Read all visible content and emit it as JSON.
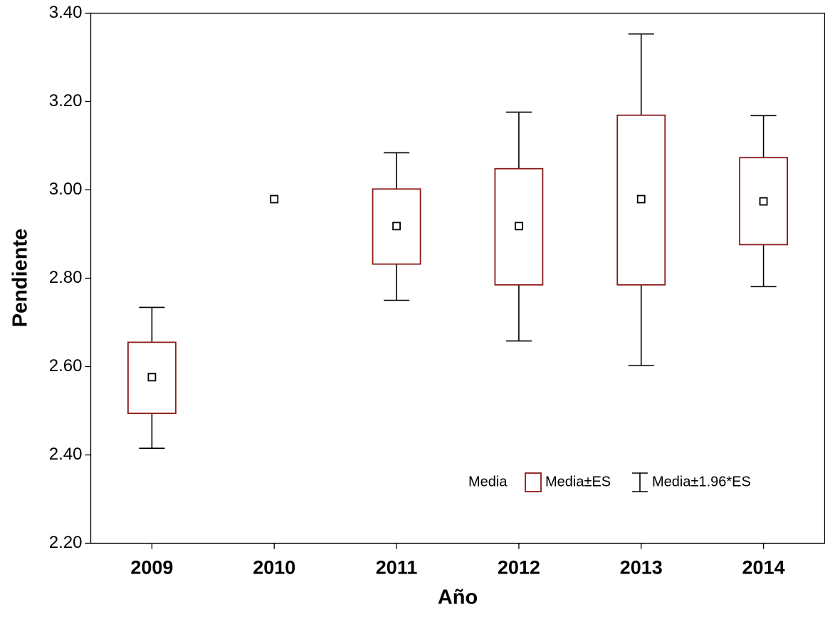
{
  "chart_data": {
    "type": "box",
    "xlabel": "Año",
    "ylabel": "Pendiente",
    "categories": [
      "2009",
      "2010",
      "2011",
      "2012",
      "2013",
      "2014"
    ],
    "series": [
      {
        "name": "Media",
        "color": "#000000",
        "values": [
          2.576,
          2.979,
          2.918,
          2.918,
          2.979,
          2.974
        ]
      },
      {
        "name": "Media±ES",
        "color": "#8b1a1a",
        "low": [
          2.494,
          null,
          2.832,
          2.785,
          2.785,
          2.876
        ],
        "high": [
          2.655,
          null,
          3.002,
          3.048,
          3.169,
          3.073
        ]
      },
      {
        "name": "Media±1.96*ES",
        "color": "#000000",
        "low": [
          2.415,
          null,
          2.75,
          2.658,
          2.602,
          2.781
        ],
        "high": [
          2.734,
          null,
          3.084,
          3.176,
          3.353,
          3.168
        ]
      }
    ],
    "ylim": [
      2.2,
      3.4
    ],
    "yticks": [
      {
        "value": 2.2,
        "label": "2.20"
      },
      {
        "value": 2.4,
        "label": "2.40"
      },
      {
        "value": 2.6,
        "label": "2.60"
      },
      {
        "value": 2.8,
        "label": "2.80"
      },
      {
        "value": 3.0,
        "label": "3.00"
      },
      {
        "value": 3.2,
        "label": "3.20"
      },
      {
        "value": 3.4,
        "label": "3.40"
      }
    ],
    "legend": "lower right"
  }
}
